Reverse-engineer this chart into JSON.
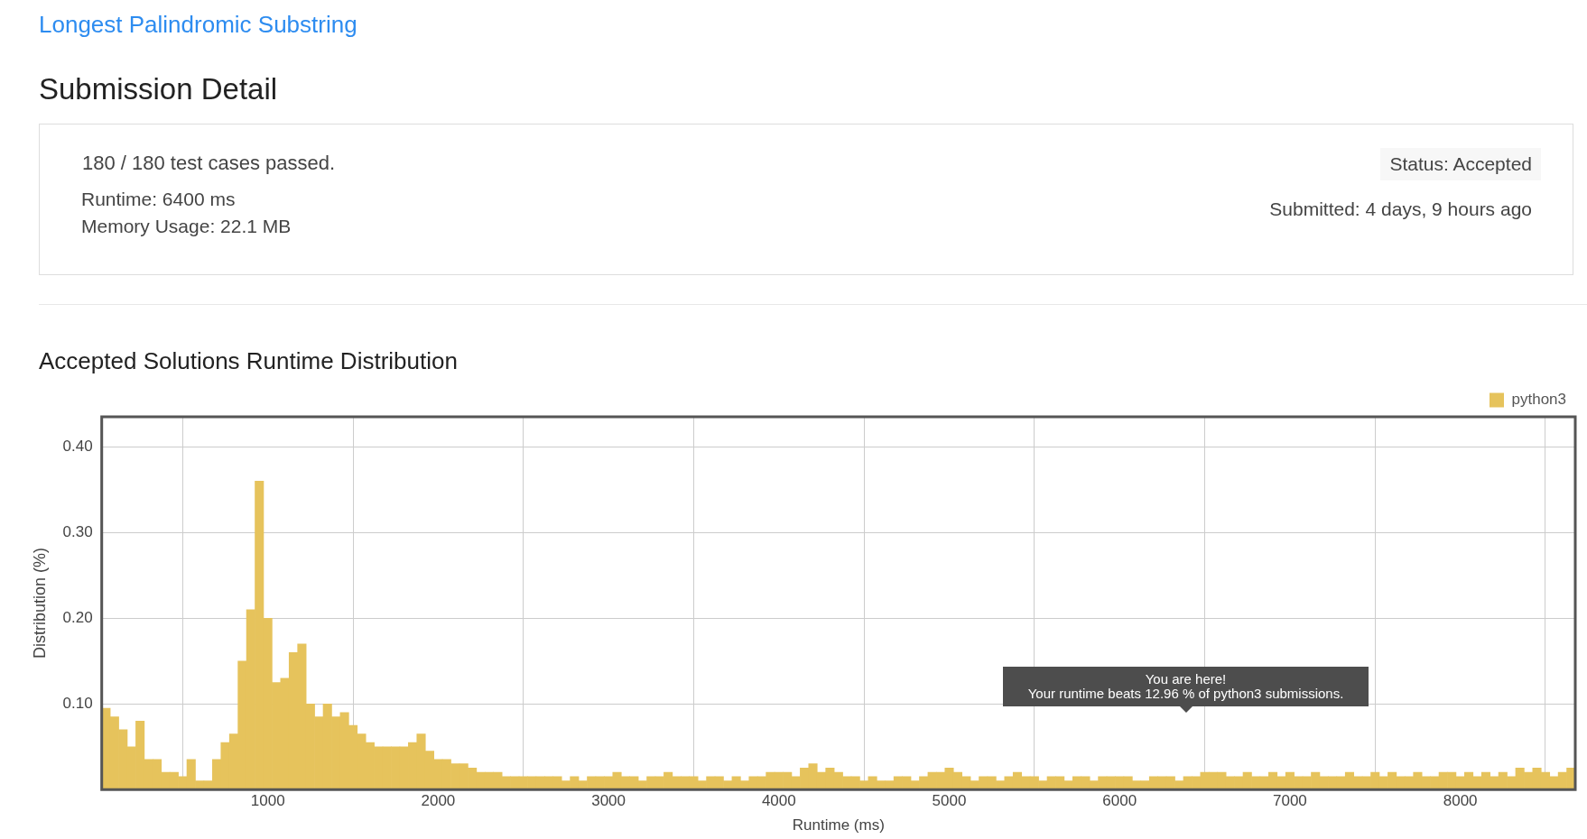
{
  "chart_data": [
    {
      "type": "other",
      "title": "Longest Palindromic Substring",
      "subtitle": "Submission Detail",
      "annotations": [
        "180 / 180 test cases passed.",
        "Runtime: 6400 ms",
        "Memory Usage: 22.1 MB",
        "Status: Accepted",
        "Submitted: 4 days, 9 hours ago"
      ]
    },
    {
      "type": "bar",
      "title": "Accepted Solutions Runtime Distribution",
      "xlabel": "Runtime (ms)",
      "ylabel": "Distribution (%)",
      "x": [
        50,
        100,
        150,
        200,
        250,
        300,
        350,
        400,
        450,
        500,
        550,
        600,
        650,
        700,
        750,
        800,
        850,
        900,
        950,
        1000,
        1050,
        1100,
        1150,
        1200,
        1250,
        1300,
        1350,
        1400,
        1450,
        1500,
        1550,
        1600,
        1650,
        1700,
        1750,
        1800,
        1850,
        1900,
        1950,
        2000,
        2050,
        2100,
        2150,
        2200,
        2250,
        2300,
        2350,
        2400,
        2450,
        2500,
        2550,
        2600,
        2650,
        2700,
        2750,
        2800,
        2850,
        2900,
        2950,
        3000,
        3050,
        3100,
        3150,
        3200,
        3250,
        3300,
        3350,
        3400,
        3450,
        3500,
        3550,
        3600,
        3650,
        3700,
        3750,
        3800,
        3850,
        3900,
        3950,
        4000,
        4050,
        4100,
        4150,
        4200,
        4250,
        4300,
        4350,
        4400,
        4450,
        4500,
        4550,
        4600,
        4650,
        4700,
        4750,
        4800,
        4850,
        4900,
        4950,
        5000,
        5050,
        5100,
        5150,
        5200,
        5250,
        5300,
        5350,
        5400,
        5450,
        5500,
        5550,
        5600,
        5650,
        5700,
        5750,
        5800,
        5850,
        5900,
        5950,
        6000,
        6050,
        6100,
        6150,
        6200,
        6250,
        6300,
        6350,
        6400,
        6450,
        6500,
        6550,
        6600,
        6650,
        6700,
        6750,
        6800,
        6850,
        6900,
        6950,
        7000,
        7050,
        7100,
        7150,
        7200,
        7250,
        7300,
        7350,
        7400,
        7450,
        7500,
        7550,
        7600,
        7650,
        7700,
        7750,
        7800,
        7850,
        7900,
        7950,
        8000,
        8050,
        8100,
        8150,
        8200,
        8250,
        8300,
        8350,
        8400,
        8450,
        8500,
        8550,
        8600,
        8650
      ],
      "series": [
        {
          "name": "python3",
          "color": "#e6c35c",
          "values": [
            0.095,
            0.085,
            0.07,
            0.05,
            0.08,
            0.035,
            0.035,
            0.02,
            0.02,
            0.015,
            0.035,
            0.01,
            0.01,
            0.035,
            0.055,
            0.065,
            0.15,
            0.21,
            0.36,
            0.2,
            0.125,
            0.13,
            0.16,
            0.17,
            0.1,
            0.085,
            0.1,
            0.085,
            0.09,
            0.075,
            0.065,
            0.055,
            0.05,
            0.05,
            0.05,
            0.05,
            0.055,
            0.065,
            0.045,
            0.035,
            0.035,
            0.03,
            0.03,
            0.025,
            0.02,
            0.02,
            0.02,
            0.015,
            0.015,
            0.015,
            0.015,
            0.015,
            0.015,
            0.015,
            0.01,
            0.015,
            0.01,
            0.015,
            0.015,
            0.015,
            0.02,
            0.015,
            0.015,
            0.01,
            0.015,
            0.015,
            0.02,
            0.015,
            0.015,
            0.015,
            0.01,
            0.015,
            0.015,
            0.01,
            0.015,
            0.01,
            0.015,
            0.015,
            0.02,
            0.02,
            0.02,
            0.015,
            0.025,
            0.03,
            0.02,
            0.025,
            0.02,
            0.015,
            0.015,
            0.01,
            0.015,
            0.01,
            0.01,
            0.015,
            0.015,
            0.01,
            0.015,
            0.02,
            0.02,
            0.025,
            0.02,
            0.015,
            0.01,
            0.015,
            0.015,
            0.01,
            0.015,
            0.02,
            0.015,
            0.015,
            0.01,
            0.015,
            0.015,
            0.01,
            0.015,
            0.015,
            0.01,
            0.015,
            0.015,
            0.015,
            0.015,
            0.01,
            0.01,
            0.015,
            0.015,
            0.015,
            0.01,
            0.015,
            0.015,
            0.02,
            0.02,
            0.02,
            0.015,
            0.015,
            0.02,
            0.015,
            0.015,
            0.02,
            0.015,
            0.02,
            0.015,
            0.015,
            0.02,
            0.015,
            0.015,
            0.015,
            0.02,
            0.015,
            0.015,
            0.02,
            0.015,
            0.02,
            0.015,
            0.015,
            0.02,
            0.015,
            0.015,
            0.02,
            0.02,
            0.015,
            0.02,
            0.015,
            0.02,
            0.015,
            0.02,
            0.015,
            0.025,
            0.02,
            0.025,
            0.02,
            0.015,
            0.02,
            0.025
          ]
        }
      ],
      "xlim": [
        25,
        8675
      ],
      "xticks": [
        1000,
        2000,
        3000,
        4000,
        5000,
        6000,
        7000,
        8000
      ],
      "ylim": [
        0,
        0.435
      ],
      "yticks": [
        {
          "value": 0.1,
          "label": "0.10"
        },
        {
          "value": 0.2,
          "label": "0.20"
        },
        {
          "value": 0.3,
          "label": "0.30"
        },
        {
          "value": 0.4,
          "label": "0.40"
        }
      ],
      "grid": true,
      "legend": "top right",
      "annotations": [
        "You are here!",
        "Your runtime beats 12.96 % of python3 submissions."
      ]
    }
  ]
}
